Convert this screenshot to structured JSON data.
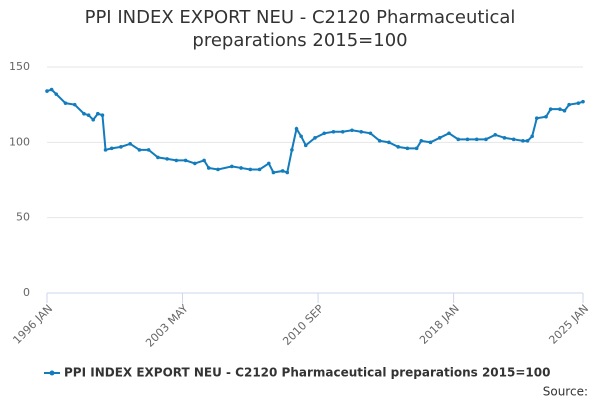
{
  "chart_data": {
    "type": "line",
    "title": "PPI INDEX EXPORT NEU - C2120 Pharmaceutical preparations 2015=100",
    "source": "Source:",
    "x": [
      "1996-01",
      "1996-04",
      "1996-07",
      "1997-01",
      "1997-07",
      "1998-01",
      "1998-04",
      "1998-07",
      "1998-10",
      "1999-01",
      "1999-03",
      "1999-07",
      "2000-01",
      "2000-07",
      "2001-01",
      "2001-07",
      "2002-01",
      "2002-07",
      "2003-01",
      "2003-07",
      "2004-01",
      "2004-07",
      "2004-10",
      "2005-04",
      "2006-01",
      "2006-07",
      "2007-01",
      "2007-07",
      "2008-01",
      "2008-04",
      "2008-10",
      "2009-01",
      "2009-04",
      "2009-07",
      "2009-10",
      "2010-01",
      "2010-07",
      "2011-01",
      "2011-07",
      "2012-01",
      "2012-07",
      "2013-01",
      "2013-07",
      "2014-01",
      "2014-07",
      "2015-01",
      "2015-07",
      "2016-01",
      "2016-04",
      "2016-10",
      "2017-04",
      "2017-10",
      "2018-04",
      "2018-10",
      "2019-04",
      "2019-10",
      "2020-04",
      "2020-10",
      "2021-04",
      "2021-10",
      "2022-01",
      "2022-04",
      "2022-07",
      "2023-01",
      "2023-04",
      "2023-10",
      "2024-01",
      "2024-04",
      "2024-10",
      "2025-01"
    ],
    "series": [
      {
        "name": "PPI INDEX EXPORT NEU - C2120 Pharmaceutical preparations 2015=100",
        "color": "#137cbd",
        "values": [
          134,
          135,
          132,
          126,
          125,
          119,
          118,
          115,
          119,
          118,
          95,
          96,
          97,
          99,
          95,
          95,
          90,
          89,
          88,
          88,
          86,
          88,
          83,
          82,
          84,
          83,
          82,
          82,
          86,
          80,
          81,
          80,
          95,
          109,
          104,
          98,
          103,
          106,
          107,
          107,
          108,
          107,
          106,
          101,
          100,
          97,
          96,
          96,
          101,
          100,
          103,
          106,
          102,
          102,
          102,
          102,
          105,
          103,
          102,
          101,
          101,
          104,
          116,
          117,
          122,
          122,
          121,
          125,
          126,
          127
        ]
      }
    ],
    "xlim": [
      "1996-01",
      "2025-01"
    ],
    "xticks": [
      {
        "value": "1996-01",
        "label": "1996 JAN"
      },
      {
        "value": "2003-05",
        "label": "2003 MAY"
      },
      {
        "value": "2010-09",
        "label": "2010 SEP"
      },
      {
        "value": "2018-01",
        "label": "2018 JAN"
      },
      {
        "value": "2025-01",
        "label": "2025 JAN"
      }
    ],
    "ylim": [
      0,
      150
    ],
    "yticks": [
      0,
      50,
      100,
      150
    ],
    "grid": true,
    "legend": "bottom"
  }
}
